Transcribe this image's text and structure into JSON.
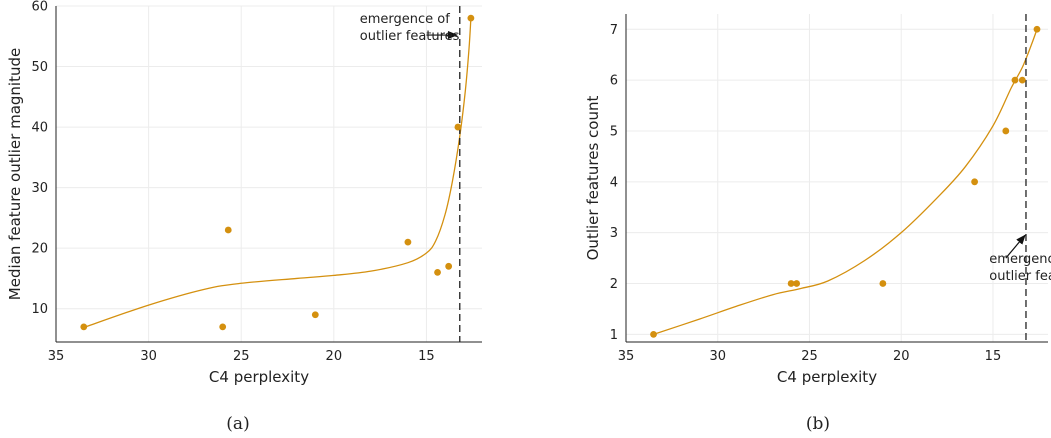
{
  "chart_data": [
    {
      "type": "scatter",
      "caption": "(a)",
      "xlabel": "C4 perplexity",
      "ylabel": "Median feature outlier magnitude",
      "xlim": [
        35,
        12
      ],
      "ylim": [
        4.5,
        60
      ],
      "x_ticks": [
        35,
        30,
        25,
        20,
        15
      ],
      "y_ticks": [
        10,
        20,
        30,
        40,
        50,
        60
      ],
      "points": [
        {
          "x": 33.5,
          "y": 7
        },
        {
          "x": 26.0,
          "y": 7
        },
        {
          "x": 25.7,
          "y": 23
        },
        {
          "x": 21.0,
          "y": 9
        },
        {
          "x": 16.0,
          "y": 21
        },
        {
          "x": 14.4,
          "y": 16
        },
        {
          "x": 13.8,
          "y": 17
        },
        {
          "x": 13.3,
          "y": 40
        },
        {
          "x": 12.6,
          "y": 58
        }
      ],
      "trend": [
        [
          33.5,
          6.9
        ],
        [
          30,
          10.6
        ],
        [
          27,
          13.2
        ],
        [
          25,
          14.2
        ],
        [
          22,
          15.0
        ],
        [
          20,
          15.5
        ],
        [
          18,
          16.2
        ],
        [
          16,
          17.6
        ],
        [
          15,
          19.2
        ],
        [
          14.5,
          21.2
        ],
        [
          14,
          25.5
        ],
        [
          13.6,
          31
        ],
        [
          13.2,
          38.5
        ],
        [
          12.9,
          46
        ],
        [
          12.7,
          53
        ],
        [
          12.6,
          58
        ]
      ],
      "vline_x": 13.2,
      "annotation": {
        "lines": [
          "emergence of",
          "outlier features"
        ],
        "arrow_from": [
          15.0,
          55.2
        ],
        "arrow_to": [
          13.35,
          55.2
        ],
        "text_at": [
          18.6,
          57.2
        ]
      },
      "color": "#d4900f"
    },
    {
      "type": "scatter",
      "caption": "(b)",
      "xlabel": "C4 perplexity",
      "ylabel": "Outlier features count",
      "xlim": [
        35,
        12
      ],
      "ylim": [
        0.85,
        7.3
      ],
      "x_ticks": [
        35,
        30,
        25,
        20,
        15
      ],
      "y_ticks": [
        1,
        2,
        3,
        4,
        5,
        6,
        7
      ],
      "points": [
        {
          "x": 33.5,
          "y": 1
        },
        {
          "x": 26.0,
          "y": 2
        },
        {
          "x": 25.7,
          "y": 2
        },
        {
          "x": 21.0,
          "y": 2
        },
        {
          "x": 16.0,
          "y": 4
        },
        {
          "x": 14.3,
          "y": 5
        },
        {
          "x": 13.8,
          "y": 6
        },
        {
          "x": 13.4,
          "y": 6
        },
        {
          "x": 12.6,
          "y": 7
        }
      ],
      "trend": [
        [
          33.5,
          1.0
        ],
        [
          31,
          1.3
        ],
        [
          29,
          1.55
        ],
        [
          27,
          1.78
        ],
        [
          25.5,
          1.9
        ],
        [
          24,
          2.05
        ],
        [
          22,
          2.45
        ],
        [
          20,
          3.0
        ],
        [
          18,
          3.7
        ],
        [
          16.5,
          4.3
        ],
        [
          15,
          5.1
        ],
        [
          14,
          5.85
        ],
        [
          13.4,
          6.25
        ],
        [
          12.9,
          6.7
        ],
        [
          12.6,
          7.0
        ]
      ],
      "vline_x": 13.2,
      "annotation": {
        "lines": [
          "emergence of",
          "outlier features"
        ],
        "arrow_from": [
          14.3,
          2.5
        ],
        "arrow_to": [
          13.25,
          2.95
        ],
        "text_at": [
          15.2,
          2.4
        ]
      },
      "color": "#d4900f"
    }
  ]
}
